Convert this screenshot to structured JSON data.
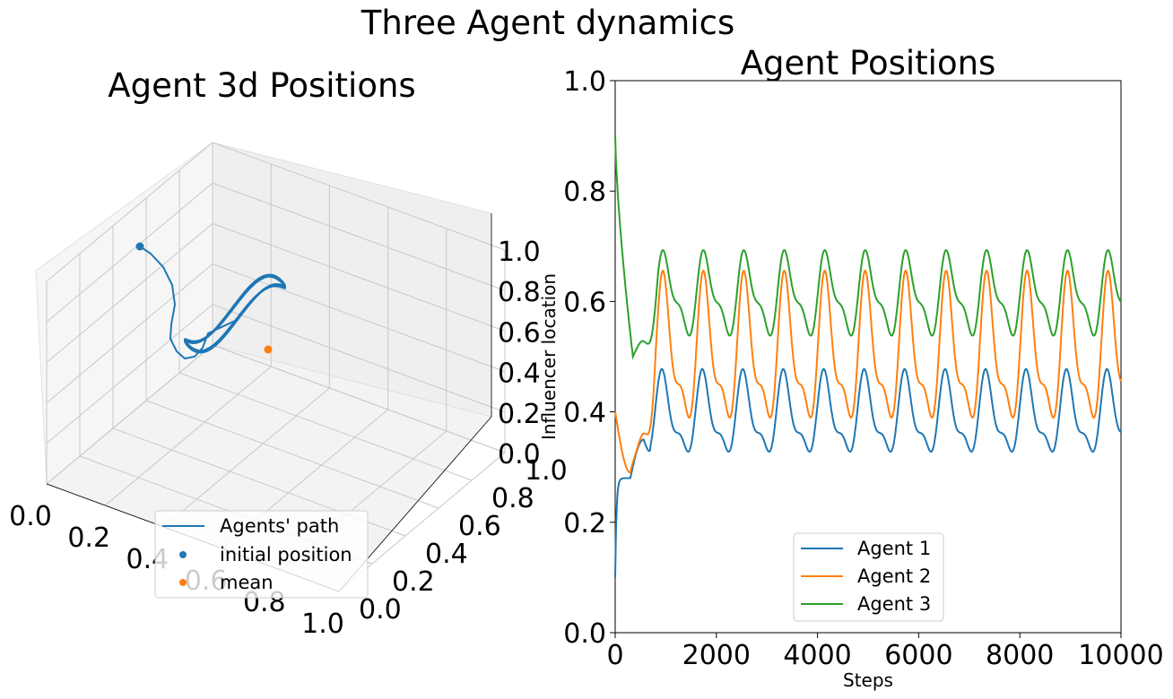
{
  "figure": {
    "title": "Three Agent dynamics"
  },
  "colors": {
    "agent1": "#1f77b4",
    "agent2": "#ff7f0e",
    "agent3": "#2ca02c",
    "grid": "#b0b0b0",
    "pane": "#f2f2f2"
  },
  "chart_data": [
    {
      "type": "line3d",
      "title": "Agent 3d Positions",
      "xlim": [
        0,
        1
      ],
      "ylim": [
        0,
        1
      ],
      "zlim": [
        0,
        1
      ],
      "x_ticks": [
        "0.0",
        "0.2",
        "0.4",
        "0.6",
        "0.8",
        "1.0"
      ],
      "y_ticks": [
        "0.0",
        "0.2",
        "0.4",
        "0.6",
        "0.8",
        "1.0"
      ],
      "z_ticks": [
        "0.0",
        "0.2",
        "0.4",
        "0.6",
        "0.8",
        "1.0"
      ],
      "grid": true,
      "legend": {
        "position": "bottom-center",
        "entries": [
          "Agents' path",
          "initial position",
          "mean"
        ]
      },
      "initial_position": [
        0.1,
        0.4,
        0.9
      ],
      "mean": [
        0.36,
        0.52,
        0.63
      ],
      "path_description": "trajectory converging onto a periodic limit cycle"
    },
    {
      "type": "line",
      "title": "Agent Positions",
      "xlabel": "Steps",
      "ylabel": "Influencer location",
      "xlim": [
        0,
        10000
      ],
      "ylim": [
        0,
        1
      ],
      "x_ticks": [
        "0",
        "2000",
        "4000",
        "6000",
        "8000",
        "10000"
      ],
      "y_ticks": [
        "0.0",
        "0.2",
        "0.4",
        "0.6",
        "0.8",
        "1.0"
      ],
      "legend": {
        "position": "bottom-center",
        "entries": [
          "Agent 1",
          "Agent 2",
          "Agent 3"
        ]
      },
      "period_steps": 800,
      "series": [
        {
          "name": "Agent 1",
          "start": 0.1,
          "first_peak": [
            430,
            0.35
          ],
          "cycle_min": 0.3,
          "cycle_max": 0.48,
          "end": 0.32
        },
        {
          "name": "Agent 2",
          "start": 0.4,
          "early_min": [
            300,
            0.29
          ],
          "cycle_min": 0.34,
          "cycle_max": 0.66,
          "end": 0.39
        },
        {
          "name": "Agent 3",
          "start": 0.9,
          "early_min": [
            350,
            0.5
          ],
          "cycle_min": 0.52,
          "cycle_max": 0.7,
          "end": 0.63
        }
      ]
    }
  ]
}
